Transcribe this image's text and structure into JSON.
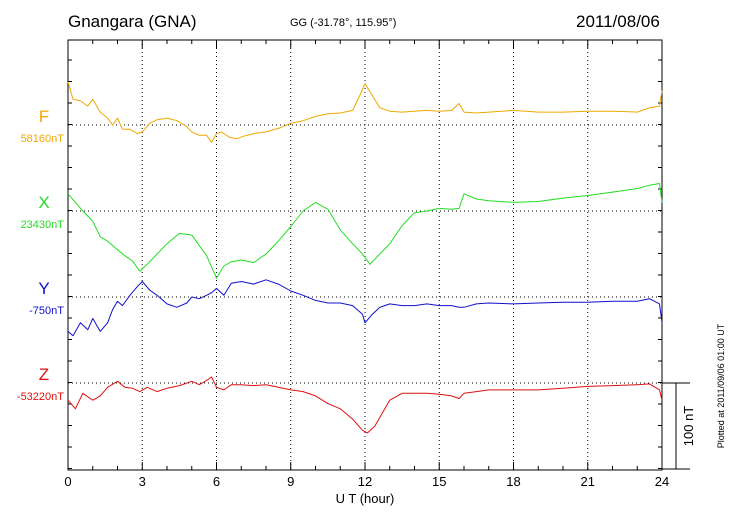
{
  "header": {
    "station": "Gnangara (GNA)",
    "coords": "GG (-31.78°, 115.95°)",
    "date": "2011/08/06"
  },
  "side_note": "Plotted at 2011/09/06 01:00 UT",
  "scale_label": "100 nT",
  "colors": {
    "F": "#f0a800",
    "X": "#22dd22",
    "Y": "#1010cc",
    "Z": "#dd1111",
    "grid": "#000000"
  },
  "chart_data": {
    "type": "line",
    "xlabel": "U T (hour)",
    "xlim": [
      0,
      24
    ],
    "xticks": [
      0,
      3,
      6,
      9,
      12,
      15,
      18,
      21,
      24
    ],
    "xtick_labels": [
      "0",
      "3",
      "6",
      "9",
      "12",
      "15",
      "18",
      "21",
      "24"
    ],
    "scale_bar_nT": 100,
    "series": [
      {
        "name": "F",
        "baseline_label": "58160nT",
        "baseline": 58160,
        "x": [
          0,
          0.2,
          0.5,
          0.8,
          1,
          1.3,
          1.6,
          1.8,
          2,
          2.2,
          2.5,
          2.8,
          3,
          3.3,
          3.6,
          4,
          4.4,
          4.8,
          5,
          5.3,
          5.6,
          5.8,
          6,
          6.2,
          6.5,
          6.8,
          7.1,
          7.5,
          8,
          8.5,
          9,
          9.5,
          10,
          10.5,
          11,
          11.5,
          11.8,
          12,
          12.3,
          12.6,
          13,
          13.5,
          14,
          14.5,
          15,
          15.5,
          15.8,
          16,
          16.5,
          17,
          18,
          19,
          20,
          21,
          22,
          23,
          23.5,
          23.9,
          24
        ],
        "y": [
          58210,
          58190,
          58188,
          58182,
          58190,
          58175,
          58168,
          58160,
          58168,
          58155,
          58155,
          58150,
          58152,
          58162,
          58166,
          58168,
          58165,
          58158,
          58152,
          58148,
          58148,
          58140,
          58150,
          58152,
          58146,
          58144,
          58147,
          58150,
          58152,
          58156,
          58162,
          58165,
          58170,
          58173,
          58174,
          58177,
          58195,
          58208,
          58194,
          58180,
          58176,
          58175,
          58176,
          58177,
          58176,
          58177,
          58185,
          58175,
          58174,
          58175,
          58177,
          58175,
          58175,
          58176,
          58176,
          58175,
          58180,
          58182,
          58200
        ]
      },
      {
        "name": "X",
        "baseline_label": "23430nT",
        "baseline": 23430,
        "x": [
          0,
          0.3,
          0.6,
          1,
          1.3,
          1.6,
          2,
          2.3,
          2.6,
          2.9,
          3.2,
          3.6,
          4,
          4.5,
          5,
          5.3,
          5.6,
          5.8,
          6,
          6.3,
          6.6,
          7,
          7.5,
          8,
          8.5,
          9,
          9.5,
          10,
          10.5,
          11,
          11.5,
          11.9,
          12.2,
          12.6,
          13,
          13.5,
          14,
          14.5,
          15,
          15.5,
          15.8,
          16,
          16.5,
          17,
          18,
          19,
          20,
          21,
          22,
          23,
          23.5,
          23.9,
          24
        ],
        "y": [
          23450,
          23440,
          23430,
          23418,
          23400,
          23395,
          23385,
          23378,
          23372,
          23360,
          23368,
          23380,
          23392,
          23404,
          23402,
          23390,
          23378,
          23365,
          23352,
          23366,
          23371,
          23373,
          23370,
          23380,
          23395,
          23412,
          23430,
          23440,
          23432,
          23408,
          23392,
          23380,
          23368,
          23380,
          23392,
          23413,
          23428,
          23430,
          23433,
          23432,
          23433,
          23450,
          23444,
          23442,
          23440,
          23441,
          23445,
          23448,
          23452,
          23456,
          23460,
          23462,
          23440
        ]
      },
      {
        "name": "Y",
        "baseline_label": "-750nT",
        "baseline": -750,
        "x": [
          0,
          0.2,
          0.5,
          0.8,
          1,
          1.3,
          1.6,
          1.8,
          2,
          2.2,
          2.5,
          2.8,
          3,
          3.3,
          3.6,
          4,
          4.4,
          4.8,
          5,
          5.3,
          5.6,
          5.8,
          6,
          6.3,
          6.6,
          7,
          7.5,
          8,
          8.5,
          9,
          9.5,
          10,
          10.5,
          11,
          11.5,
          11.9,
          12,
          12.3,
          12.6,
          13,
          13.5,
          14,
          14.5,
          15,
          15.5,
          15.8,
          16,
          16.5,
          17,
          18,
          19,
          20,
          21,
          22,
          23,
          23.5,
          23.9,
          24
        ],
        "y": [
          -790,
          -795,
          -780,
          -788,
          -775,
          -790,
          -780,
          -765,
          -755,
          -760,
          -748,
          -738,
          -732,
          -742,
          -748,
          -758,
          -762,
          -757,
          -750,
          -752,
          -748,
          -745,
          -740,
          -748,
          -734,
          -732,
          -735,
          -730,
          -735,
          -743,
          -748,
          -754,
          -757,
          -757,
          -760,
          -770,
          -780,
          -770,
          -762,
          -758,
          -760,
          -760,
          -758,
          -760,
          -760,
          -762,
          -762,
          -758,
          -757,
          -758,
          -757,
          -756,
          -756,
          -755,
          -755,
          -752,
          -758,
          -780
        ]
      },
      {
        "name": "Z",
        "baseline_label": "-53220nT",
        "baseline": -53220,
        "x": [
          0,
          0.3,
          0.6,
          1,
          1.3,
          1.6,
          2,
          2.3,
          2.6,
          2.9,
          3.2,
          3.6,
          4,
          4.5,
          5,
          5.3,
          5.6,
          5.8,
          6,
          6.3,
          6.6,
          7,
          7.5,
          8,
          8.5,
          9,
          9.5,
          10,
          10.5,
          11,
          11.5,
          11.9,
          12.1,
          12.4,
          12.8,
          13,
          13.5,
          14,
          14.5,
          15,
          15.5,
          15.8,
          16,
          16.5,
          17,
          18,
          19,
          20,
          21,
          22,
          23,
          23.5,
          23.9,
          24
        ],
        "y": [
          -53240,
          -53250,
          -53232,
          -53240,
          -53235,
          -53225,
          -53218,
          -53225,
          -53226,
          -53230,
          -53225,
          -53230,
          -53226,
          -53223,
          -53218,
          -53222,
          -53217,
          -53213,
          -53225,
          -53228,
          -53222,
          -53222,
          -53223,
          -53222,
          -53225,
          -53228,
          -53230,
          -53235,
          -53244,
          -53250,
          -53262,
          -53275,
          -53278,
          -53270,
          -53250,
          -53240,
          -53232,
          -53232,
          -53232,
          -53233,
          -53235,
          -53238,
          -53232,
          -53230,
          -53228,
          -53228,
          -53228,
          -53226,
          -53224,
          -53223,
          -53222,
          -53221,
          -53228,
          -53240
        ]
      }
    ]
  }
}
